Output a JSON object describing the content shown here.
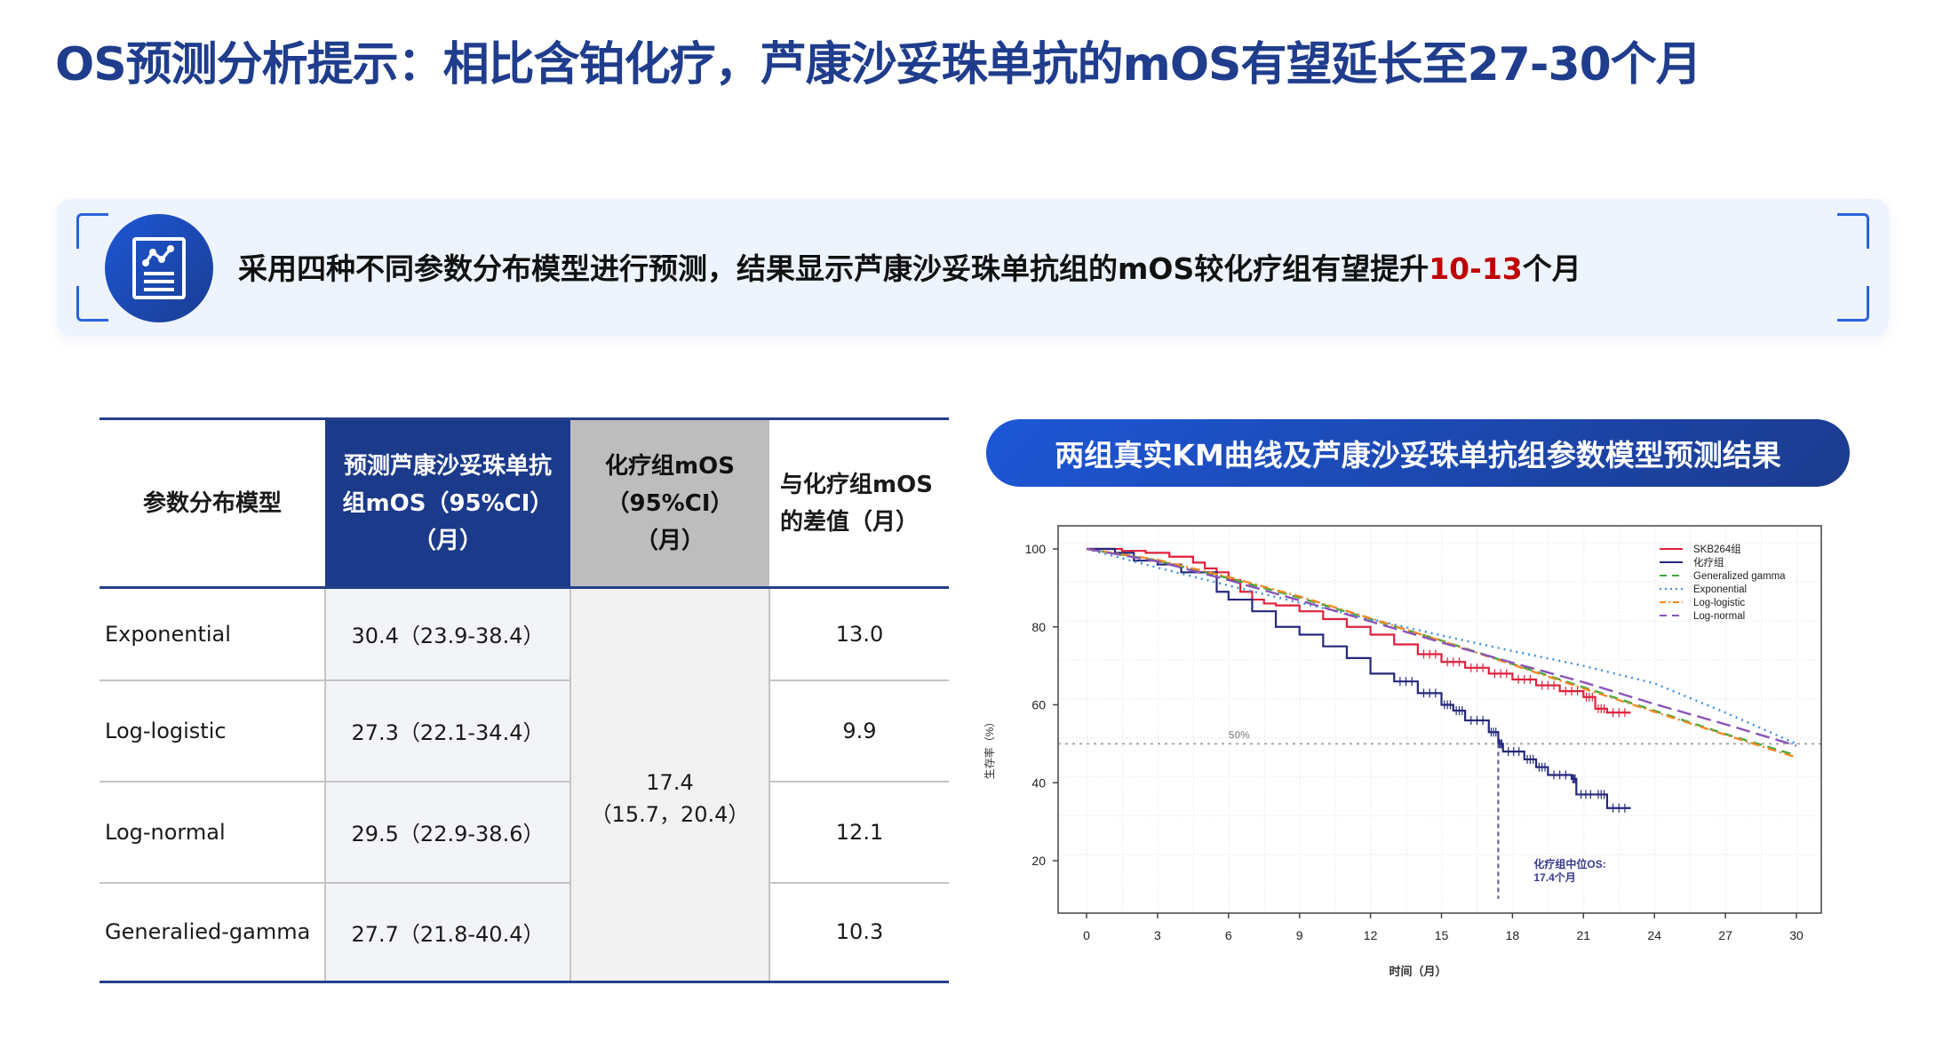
{
  "page": {
    "title": "OS预测分析提示：相比含铂化疗，芦康沙妥珠单抗的mOS有望延长至27-30个月"
  },
  "banner": {
    "icon": "chart-document-icon",
    "text_before": "采用四种不同参数分布模型进行预测，结果显示芦康沙妥珠单抗组的mOS较化疗组有望提升",
    "highlight": "10-13",
    "text_after": "个月",
    "highlight_color": "#c00000"
  },
  "table": {
    "headers": {
      "model": "参数分布模型",
      "pred_line1": "预测芦康沙妥珠单抗",
      "pred_line2": "组mOS（95%CI）",
      "pred_line3": "（月）",
      "chemo_line1": "化疗组mOS",
      "chemo_line2": "（95%CI）",
      "chemo_line3": "（月）",
      "diff_line1": "与化疗组mOS",
      "diff_line2": "的差值（月）"
    },
    "rows": [
      {
        "model": "Exponential",
        "pred": "30.4（23.9-38.4）",
        "diff": "13.0"
      },
      {
        "model": "Log-logistic",
        "pred": "27.3（22.1-34.4）",
        "diff": "9.9"
      },
      {
        "model": "Log-normal",
        "pred": "29.5（22.9-38.6）",
        "diff": "12.1"
      },
      {
        "model": "Generalied-gamma",
        "pred": "27.7（21.8-40.4）",
        "diff": "10.3"
      }
    ],
    "chemo_merged": {
      "value": "17.4",
      "ci": "（15.7，20.4）"
    },
    "colors": {
      "pred_header_bg": "#1c3a8a",
      "chemo_header_bg": "#bdbdbd",
      "rule": "#25408a"
    }
  },
  "chart_section": {
    "title": "两组真实KM曲线及芦康沙妥珠单抗组参数模型预测结果"
  },
  "chart_data": {
    "type": "line",
    "title": "两组真实KM曲线及芦康沙妥珠单抗组参数模型预测结果",
    "xlabel": "时间（月）",
    "ylabel": "生存率（%）",
    "xlim": [
      -1,
      31
    ],
    "ylim": [
      7,
      108
    ],
    "x_ticks": [
      0,
      3,
      6,
      9,
      12,
      15,
      18,
      21,
      24,
      27,
      30
    ],
    "y_ticks": [
      20,
      40,
      60,
      80,
      100
    ],
    "grid": true,
    "legend_position": "top-right",
    "reference_line": {
      "y": 50,
      "label": "50%"
    },
    "median_marker": {
      "x": 17.4,
      "label_line1": "化疗组中位OS:",
      "label_line2": "17.4个月"
    },
    "series": [
      {
        "name": "SKB264组",
        "style": "solid",
        "color": "#e0203c",
        "kind": "step",
        "x": [
          0,
          1.5,
          2.5,
          3.5,
          4.5,
          5.0,
          5.5,
          6.0,
          6.5,
          7.0,
          7.5,
          8.0,
          9.0,
          10.0,
          11.0,
          12.0,
          13.0,
          14.0,
          15.0,
          16.0,
          17.0,
          18.0,
          19.0,
          20.0,
          21.0,
          21.5,
          22.0,
          23.0
        ],
        "y": [
          100,
          99.5,
          99,
          98,
          96.5,
          95,
          94,
          92,
          89,
          87,
          86,
          85.5,
          84,
          82,
          80,
          78,
          75.5,
          73,
          71,
          69.5,
          68,
          66.5,
          65,
          63.5,
          62,
          59,
          58,
          58
        ]
      },
      {
        "name": "化疗组",
        "style": "solid",
        "color": "#24287a",
        "kind": "step",
        "x": [
          0,
          1.2,
          2.0,
          3.0,
          4.0,
          5.0,
          5.5,
          6.0,
          7.0,
          8.0,
          9.0,
          10.0,
          11.0,
          12.0,
          13.0,
          14.0,
          15.0,
          15.5,
          16.0,
          17.0,
          17.4,
          17.6,
          18.5,
          19.0,
          19.5,
          20.5,
          20.7,
          21.5,
          22.0,
          23.0
        ],
        "y": [
          100,
          99,
          97,
          96,
          94,
          94,
          89,
          87,
          84,
          80,
          78,
          75,
          72,
          68,
          66,
          63,
          60,
          58.5,
          56,
          53,
          50,
          48,
          46,
          44,
          42,
          41,
          37,
          37,
          33.5,
          33.5
        ]
      },
      {
        "name": "Generalized gamma",
        "style": "dashed",
        "color": "#3ea83e",
        "x": [
          0,
          3,
          6,
          9,
          12,
          15,
          18,
          21,
          24,
          27,
          30
        ],
        "y": [
          100,
          97,
          92.5,
          87.5,
          82,
          76.5,
          70.5,
          64.5,
          58.5,
          52.5,
          47
        ]
      },
      {
        "name": "Exponential",
        "style": "dotted",
        "color": "#3a8fd8",
        "x": [
          0,
          3,
          6,
          9,
          12,
          15,
          18,
          21,
          24,
          27,
          30
        ],
        "y": [
          100,
          95.2,
          90.6,
          86.2,
          82,
          77.8,
          73.8,
          70,
          65.5,
          58,
          50
        ]
      },
      {
        "name": "Log-logistic",
        "style": "dashdot",
        "color": "#f08a24",
        "x": [
          0,
          3,
          6,
          9,
          12,
          15,
          18,
          21,
          24,
          27,
          30
        ],
        "y": [
          100,
          97.2,
          92.8,
          87.8,
          82.2,
          76.4,
          70.3,
          64.2,
          58.2,
          52.3,
          46.5
        ]
      },
      {
        "name": "Log-normal",
        "style": "longdash",
        "color": "#8a55b8",
        "x": [
          0,
          3,
          6,
          9,
          12,
          15,
          18,
          21,
          24,
          27,
          30
        ],
        "y": [
          100,
          96.8,
          92,
          86.8,
          81.4,
          76,
          70.8,
          65.8,
          60.2,
          55,
          49.5
        ]
      }
    ]
  }
}
